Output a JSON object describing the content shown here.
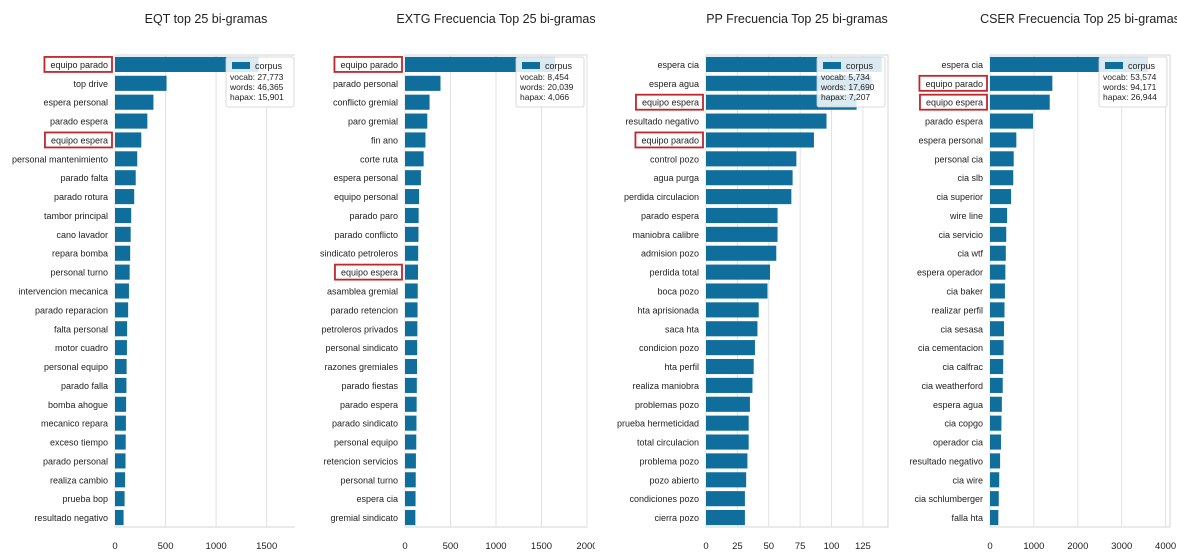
{
  "chart_data": [
    {
      "type": "bar",
      "orientation": "horizontal",
      "title": "EQT top 25 bi-gramas",
      "categories": [
        "equipo parado",
        "top drive",
        "espera personal",
        "parado espera",
        "equipo espera",
        "personal mantenimiento",
        "parado falta",
        "parado rotura",
        "tambor principal",
        "cano lavador",
        "repara bomba",
        "personal turno",
        "intervencion mecanica",
        "parado reparacion",
        "falta personal",
        "motor cuadro",
        "personal equipo",
        "parado falla",
        "bomba ahogue",
        "mecanico repara",
        "exceso tiempo",
        "parado personal",
        "realiza cambio",
        "prueba bop",
        "resultado negativo"
      ],
      "values": [
        1420,
        510,
        380,
        320,
        260,
        220,
        205,
        190,
        160,
        155,
        150,
        145,
        138,
        130,
        120,
        118,
        115,
        113,
        110,
        108,
        106,
        104,
        100,
        95,
        85
      ],
      "highlighted": [
        "equipo parado",
        "equipo espera"
      ],
      "xticks": [
        "0",
        "500",
        "1000",
        "1500"
      ],
      "xlim": [
        0,
        1800
      ],
      "grid": true,
      "legend": {
        "label": "corpus",
        "lines": [
          "vocab: 27,773",
          "words: 46,365",
          "hapax: 15,901"
        ],
        "placement": "top-right"
      }
    },
    {
      "type": "bar",
      "orientation": "horizontal",
      "title": "EXTG Frecuencia Top 25 bi-gramas",
      "categories": [
        "equipo parado",
        "parado personal",
        "conflicto gremial",
        "paro gremial",
        "fin ano",
        "corte ruta",
        "espera personal",
        "equipo personal",
        "parado paro",
        "parado conflicto",
        "sindicato petroleros",
        "equipo espera",
        "asamblea gremial",
        "parado retencion",
        "petroleros privados",
        "personal sindicato",
        "razones gremiales",
        "parado fiestas",
        "parado espera",
        "parado sindicato",
        "personal equipo",
        "retencion servicios",
        "personal turno",
        "espera cia",
        "gremial sindicato"
      ],
      "values": [
        1650,
        390,
        270,
        245,
        225,
        205,
        175,
        155,
        150,
        148,
        145,
        143,
        140,
        138,
        136,
        134,
        132,
        130,
        128,
        126,
        124,
        120,
        118,
        116,
        114
      ],
      "highlighted": [
        "equipo parado",
        "equipo espera"
      ],
      "xticks": [
        "0",
        "500",
        "1000",
        "1500",
        "2000"
      ],
      "xlim": [
        0,
        2000
      ],
      "grid": true,
      "legend": {
        "label": "corpus",
        "lines": [
          "vocab: 8,454",
          "words: 20,039",
          "hapax: 4,066"
        ],
        "placement": "top-right"
      }
    },
    {
      "type": "bar",
      "orientation": "horizontal",
      "title": "PP Frecuencia Top 25 bi-gramas",
      "categories": [
        "espera cia",
        "espera agua",
        "equipo espera",
        "resultado negativo",
        "equipo parado",
        "control pozo",
        "agua purga",
        "perdida circulacion",
        "parado espera",
        "maniobra calibre",
        "admision pozo",
        "perdida total",
        "boca pozo",
        "hta aprisionada",
        "saca hta",
        "condicion pozo",
        "hta perfil",
        "realiza maniobra",
        "problemas pozo",
        "prueba hermeticidad",
        "total circulacion",
        "problema pozo",
        "pozo abierto",
        "condiciones pozo",
        "cierra pozo"
      ],
      "values": [
        140,
        132,
        120,
        96,
        86,
        72,
        69,
        68,
        57,
        57,
        56,
        51,
        49,
        42,
        41,
        39,
        38,
        37,
        35,
        34,
        34,
        33,
        32,
        31,
        31
      ],
      "highlighted": [
        "equipo espera",
        "equipo parado"
      ],
      "xticks": [
        "0",
        "25",
        "50",
        "75",
        "100",
        "125"
      ],
      "xlim": [
        0,
        145
      ],
      "grid": true,
      "legend": {
        "label": "corpus",
        "lines": [
          "vocab: 5,734",
          "words: 17,690",
          "hapax: 7,207"
        ],
        "placement": "top-right"
      }
    },
    {
      "type": "bar",
      "orientation": "horizontal",
      "title": "CSER Frecuencia Top 25 bi-gramas",
      "categories": [
        "espera cia",
        "equipo parado",
        "equipo espera",
        "parado espera",
        "espera personal",
        "personal cia",
        "cia slb",
        "cia superior",
        "wire line",
        "cia servicio",
        "cia wtf",
        "espera operador",
        "cia baker",
        "realizar perfil",
        "cia sesasa",
        "cia cementacion",
        "cia calfrac",
        "cia weatherford",
        "espera agua",
        "cia copgo",
        "operador cia",
        "resultado negativo",
        "cia wire",
        "cia schlumberger",
        "falla hta"
      ],
      "values": [
        3600,
        1420,
        1360,
        980,
        600,
        540,
        530,
        480,
        390,
        370,
        360,
        350,
        340,
        330,
        320,
        310,
        300,
        290,
        270,
        260,
        250,
        230,
        210,
        200,
        190
      ],
      "highlighted": [
        "equipo parado",
        "equipo espera"
      ],
      "xticks": [
        "0",
        "1000",
        "2000",
        "3000",
        "4000"
      ],
      "xlim": [
        0,
        4100
      ],
      "grid": true,
      "legend": {
        "label": "corpus",
        "lines": [
          "vocab: 53,574",
          "words: 94,171",
          "hapax: 26,944"
        ],
        "placement": "top-right"
      }
    }
  ],
  "colors": {
    "bar": "#0f6e9c",
    "highlight": "#c0272d",
    "grid": "#e1e1e1",
    "axis": "#d6d6d6",
    "text": "#222222"
  }
}
